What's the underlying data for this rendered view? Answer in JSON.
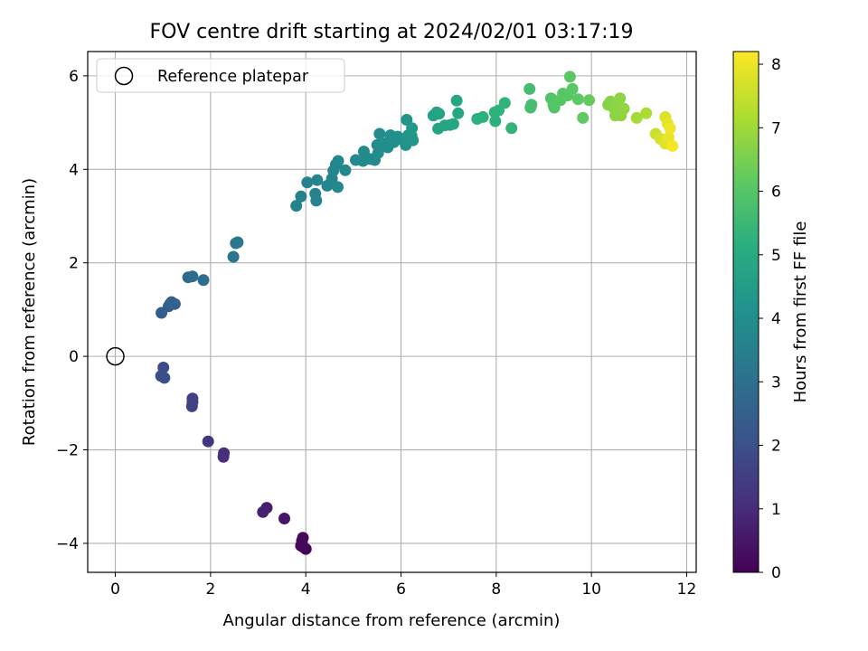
{
  "chart_data": {
    "type": "scatter",
    "title": "FOV centre drift starting at 2024/02/01 03:17:19",
    "xlabel": "Angular distance from reference (arcmin)",
    "ylabel": "Rotation from reference (arcmin)",
    "xlim": [
      -0.58,
      12.2
    ],
    "ylim": [
      -4.62,
      6.52
    ],
    "xticks": [
      0,
      2,
      4,
      6,
      8,
      10,
      12
    ],
    "yticks": [
      -4,
      -2,
      0,
      2,
      4,
      6
    ],
    "grid": true,
    "legend": {
      "placement": "upper-left",
      "entries": [
        "Reference platepar"
      ]
    },
    "reference_point": {
      "label": "Reference platepar",
      "x": 0,
      "y": 0
    },
    "colorbar": {
      "label": "Hours from first FF file",
      "min": 0,
      "max": 8.2,
      "ticks": [
        0,
        1,
        2,
        3,
        4,
        5,
        6,
        7,
        8
      ],
      "colormap": "viridis"
    },
    "points": [
      {
        "x": 3.92,
        "y": -3.95,
        "h": 0.1
      },
      {
        "x": 3.95,
        "y": -4.08,
        "h": 0.12
      },
      {
        "x": 4.0,
        "y": -4.12,
        "h": 0.14
      },
      {
        "x": 3.9,
        "y": -4.05,
        "h": 0.16
      },
      {
        "x": 3.94,
        "y": -3.88,
        "h": 0.18
      },
      {
        "x": 3.55,
        "y": -3.47,
        "h": 0.5
      },
      {
        "x": 3.18,
        "y": -3.24,
        "h": 0.7
      },
      {
        "x": 3.1,
        "y": -3.33,
        "h": 0.75
      },
      {
        "x": 2.28,
        "y": -2.07,
        "h": 1.1
      },
      {
        "x": 2.27,
        "y": -2.15,
        "h": 1.12
      },
      {
        "x": 1.95,
        "y": -1.82,
        "h": 1.3
      },
      {
        "x": 1.62,
        "y": -0.9,
        "h": 1.6
      },
      {
        "x": 1.62,
        "y": -0.98,
        "h": 1.62
      },
      {
        "x": 1.61,
        "y": -1.07,
        "h": 1.64
      },
      {
        "x": 1.01,
        "y": -0.24,
        "h": 1.9
      },
      {
        "x": 0.96,
        "y": -0.42,
        "h": 1.95
      },
      {
        "x": 1.03,
        "y": -0.46,
        "h": 1.97
      },
      {
        "x": 0.97,
        "y": 0.93,
        "h": 2.45
      },
      {
        "x": 1.12,
        "y": 1.07,
        "h": 2.5
      },
      {
        "x": 1.18,
        "y": 1.16,
        "h": 2.55
      },
      {
        "x": 1.25,
        "y": 1.12,
        "h": 2.6
      },
      {
        "x": 1.15,
        "y": 1.12,
        "h": 2.57
      },
      {
        "x": 1.53,
        "y": 1.69,
        "h": 2.85
      },
      {
        "x": 1.62,
        "y": 1.71,
        "h": 2.88
      },
      {
        "x": 1.85,
        "y": 1.63,
        "h": 2.92
      },
      {
        "x": 2.48,
        "y": 2.13,
        "h": 3.2
      },
      {
        "x": 2.53,
        "y": 2.42,
        "h": 3.25
      },
      {
        "x": 2.57,
        "y": 2.44,
        "h": 3.27
      },
      {
        "x": 3.8,
        "y": 3.22,
        "h": 3.6
      },
      {
        "x": 3.9,
        "y": 3.42,
        "h": 3.62
      },
      {
        "x": 4.03,
        "y": 3.72,
        "h": 3.64
      },
      {
        "x": 4.2,
        "y": 3.48,
        "h": 3.66
      },
      {
        "x": 4.22,
        "y": 3.33,
        "h": 3.68
      },
      {
        "x": 4.24,
        "y": 3.77,
        "h": 3.7
      },
      {
        "x": 4.45,
        "y": 3.65,
        "h": 3.72
      },
      {
        "x": 4.55,
        "y": 3.8,
        "h": 3.74
      },
      {
        "x": 4.58,
        "y": 3.97,
        "h": 3.76
      },
      {
        "x": 4.63,
        "y": 4.1,
        "h": 3.78
      },
      {
        "x": 4.68,
        "y": 4.18,
        "h": 3.8
      },
      {
        "x": 4.67,
        "y": 3.62,
        "h": 3.82
      },
      {
        "x": 4.83,
        "y": 3.98,
        "h": 3.84
      },
      {
        "x": 5.05,
        "y": 4.2,
        "h": 3.86
      },
      {
        "x": 5.2,
        "y": 4.18,
        "h": 3.88
      },
      {
        "x": 5.22,
        "y": 4.38,
        "h": 3.9
      },
      {
        "x": 5.35,
        "y": 4.22,
        "h": 3.92
      },
      {
        "x": 5.45,
        "y": 4.2,
        "h": 3.94
      },
      {
        "x": 5.52,
        "y": 4.35,
        "h": 3.96
      },
      {
        "x": 5.5,
        "y": 4.52,
        "h": 3.98
      },
      {
        "x": 5.55,
        "y": 4.76,
        "h": 4.0
      },
      {
        "x": 5.65,
        "y": 4.55,
        "h": 4.02
      },
      {
        "x": 5.72,
        "y": 4.47,
        "h": 4.04
      },
      {
        "x": 5.78,
        "y": 4.73,
        "h": 4.06
      },
      {
        "x": 5.85,
        "y": 4.58,
        "h": 4.08
      },
      {
        "x": 5.93,
        "y": 4.7,
        "h": 4.1
      },
      {
        "x": 6.05,
        "y": 4.62,
        "h": 4.15
      },
      {
        "x": 6.1,
        "y": 4.52,
        "h": 4.2
      },
      {
        "x": 6.12,
        "y": 5.06,
        "h": 4.25
      },
      {
        "x": 6.15,
        "y": 4.73,
        "h": 4.3
      },
      {
        "x": 6.22,
        "y": 4.72,
        "h": 4.35
      },
      {
        "x": 6.25,
        "y": 4.62,
        "h": 4.4
      },
      {
        "x": 6.23,
        "y": 4.88,
        "h": 4.45
      },
      {
        "x": 6.68,
        "y": 5.15,
        "h": 4.7
      },
      {
        "x": 6.75,
        "y": 5.22,
        "h": 4.75
      },
      {
        "x": 6.8,
        "y": 5.19,
        "h": 4.78
      },
      {
        "x": 6.78,
        "y": 4.87,
        "h": 4.8
      },
      {
        "x": 6.92,
        "y": 4.94,
        "h": 4.83
      },
      {
        "x": 7.03,
        "y": 4.95,
        "h": 4.85
      },
      {
        "x": 7.1,
        "y": 4.97,
        "h": 4.88
      },
      {
        "x": 7.17,
        "y": 5.47,
        "h": 4.9
      },
      {
        "x": 7.2,
        "y": 5.2,
        "h": 4.92
      },
      {
        "x": 7.6,
        "y": 5.08,
        "h": 5.2
      },
      {
        "x": 7.72,
        "y": 5.12,
        "h": 5.22
      },
      {
        "x": 7.98,
        "y": 5.03,
        "h": 5.25
      },
      {
        "x": 7.97,
        "y": 5.22,
        "h": 5.28
      },
      {
        "x": 8.05,
        "y": 5.26,
        "h": 5.3
      },
      {
        "x": 8.18,
        "y": 5.42,
        "h": 5.33
      },
      {
        "x": 8.32,
        "y": 4.88,
        "h": 5.36
      },
      {
        "x": 8.7,
        "y": 5.72,
        "h": 5.7
      },
      {
        "x": 8.72,
        "y": 5.32,
        "h": 5.72
      },
      {
        "x": 8.74,
        "y": 5.38,
        "h": 5.74
      },
      {
        "x": 9.15,
        "y": 5.52,
        "h": 5.95
      },
      {
        "x": 9.2,
        "y": 5.38,
        "h": 5.98
      },
      {
        "x": 9.22,
        "y": 5.32,
        "h": 6.0
      },
      {
        "x": 9.28,
        "y": 5.46,
        "h": 6.02
      },
      {
        "x": 9.35,
        "y": 5.48,
        "h": 6.04
      },
      {
        "x": 9.4,
        "y": 5.62,
        "h": 6.06
      },
      {
        "x": 9.5,
        "y": 5.58,
        "h": 6.08
      },
      {
        "x": 9.55,
        "y": 5.98,
        "h": 6.1
      },
      {
        "x": 9.6,
        "y": 5.72,
        "h": 6.12
      },
      {
        "x": 9.72,
        "y": 5.5,
        "h": 6.15
      },
      {
        "x": 9.82,
        "y": 5.1,
        "h": 6.2
      },
      {
        "x": 9.95,
        "y": 5.48,
        "h": 6.25
      },
      {
        "x": 10.35,
        "y": 5.38,
        "h": 6.7
      },
      {
        "x": 10.4,
        "y": 5.45,
        "h": 6.72
      },
      {
        "x": 10.48,
        "y": 5.3,
        "h": 6.74
      },
      {
        "x": 10.5,
        "y": 5.15,
        "h": 6.76
      },
      {
        "x": 10.55,
        "y": 5.42,
        "h": 6.78
      },
      {
        "x": 10.6,
        "y": 5.52,
        "h": 6.8
      },
      {
        "x": 10.62,
        "y": 5.15,
        "h": 6.82
      },
      {
        "x": 10.68,
        "y": 5.3,
        "h": 6.84
      },
      {
        "x": 10.95,
        "y": 5.1,
        "h": 7.1
      },
      {
        "x": 11.15,
        "y": 5.2,
        "h": 7.2
      },
      {
        "x": 11.35,
        "y": 4.76,
        "h": 7.6
      },
      {
        "x": 11.45,
        "y": 4.65,
        "h": 7.7
      },
      {
        "x": 11.55,
        "y": 5.12,
        "h": 7.8
      },
      {
        "x": 11.55,
        "y": 4.55,
        "h": 7.85
      },
      {
        "x": 11.6,
        "y": 4.98,
        "h": 7.9
      },
      {
        "x": 11.62,
        "y": 4.68,
        "h": 7.95
      },
      {
        "x": 11.65,
        "y": 4.88,
        "h": 8.0
      },
      {
        "x": 11.7,
        "y": 4.5,
        "h": 8.1
      }
    ]
  }
}
